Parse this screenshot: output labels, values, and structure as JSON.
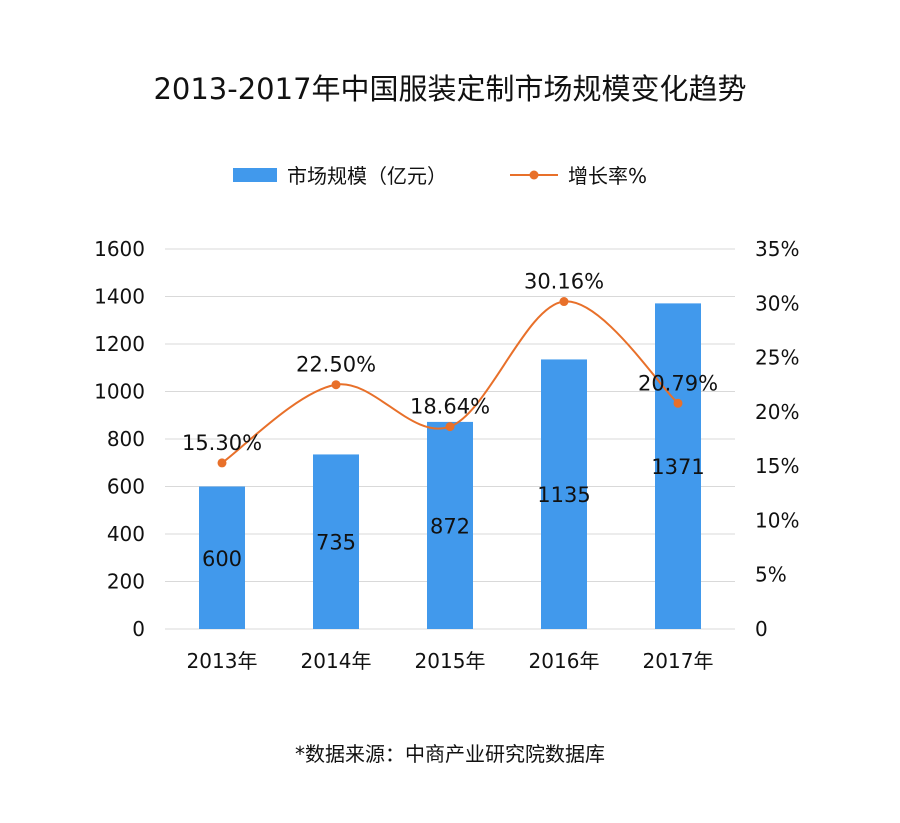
{
  "chart_data": {
    "type": "bar+line",
    "title": "2013-2017年中国服装定制市场规模变化趋势",
    "categories": [
      "2013年",
      "2014年",
      "2015年",
      "2016年",
      "2017年"
    ],
    "series": [
      {
        "name": "市场规模（亿元）",
        "type": "bar",
        "axis": "left",
        "values": [
          600,
          735,
          872,
          1135,
          1371
        ],
        "labels": [
          "600",
          "735",
          "872",
          "1135",
          "1371"
        ],
        "color": "#4199EC"
      },
      {
        "name": "增长率%",
        "type": "line",
        "axis": "right",
        "values": [
          15.3,
          22.5,
          18.64,
          30.16,
          20.79
        ],
        "labels": [
          "15.30%",
          "22.50%",
          "18.64%",
          "30.16%",
          "20.79%"
        ],
        "color": "#E8702A",
        "smooth": true,
        "markers": true
      }
    ],
    "left_axis": {
      "ylim": [
        0,
        1600
      ],
      "ticks": [
        "0",
        "200",
        "400",
        "600",
        "800",
        "1000",
        "1200",
        "1400",
        "1600"
      ]
    },
    "right_axis": {
      "ylim": [
        0,
        35
      ],
      "ticks": [
        "0",
        "5%",
        "10%",
        "15%",
        "20%",
        "25%",
        "30%",
        "35%"
      ]
    },
    "grid": true,
    "legend_position": "top",
    "source": "*数据来源：中商产业研究院数据库"
  }
}
